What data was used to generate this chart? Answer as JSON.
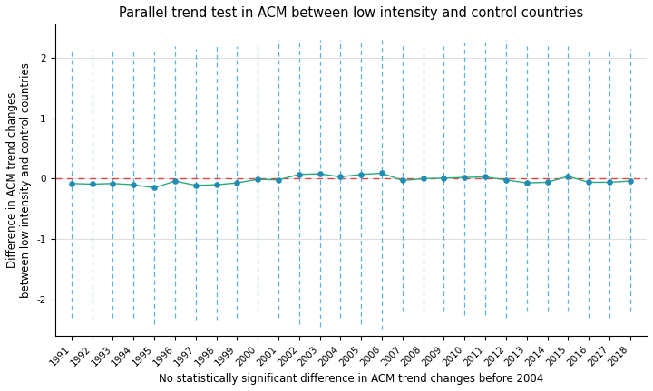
{
  "title": "Parallel trend test in ACM between low intensity and control countries",
  "xlabel": "No statistically significant difference in ACM trend changes before 2004",
  "ylabel": "Difference in ACM trend changes\nbetween low intensity and control countries",
  "years": [
    1991,
    1992,
    1993,
    1994,
    1995,
    1996,
    1997,
    1998,
    1999,
    2000,
    2001,
    2002,
    2003,
    2004,
    2005,
    2006,
    2007,
    2008,
    2009,
    2010,
    2011,
    2012,
    2013,
    2014,
    2015,
    2016,
    2017,
    2018
  ],
  "point_estimates": [
    -0.08,
    -0.09,
    -0.08,
    -0.1,
    -0.15,
    -0.04,
    -0.11,
    -0.1,
    -0.07,
    -0.01,
    -0.02,
    0.07,
    0.08,
    0.03,
    0.07,
    0.09,
    -0.03,
    0.0,
    0.01,
    0.02,
    0.03,
    -0.02,
    -0.07,
    -0.06,
    0.04,
    -0.06,
    -0.06,
    -0.04
  ],
  "ci_upper": [
    2.15,
    2.15,
    2.15,
    2.15,
    2.1,
    2.2,
    2.15,
    2.2,
    2.2,
    2.2,
    2.3,
    2.25,
    2.3,
    2.3,
    2.3,
    2.35,
    2.2,
    2.2,
    2.2,
    2.25,
    2.25,
    2.3,
    2.2,
    2.2,
    2.2,
    2.15,
    2.15,
    2.15
  ],
  "ci_lower": [
    -2.3,
    -2.35,
    -2.3,
    -2.3,
    -2.4,
    -2.3,
    -2.35,
    -2.35,
    -2.3,
    -2.2,
    -2.3,
    -2.4,
    -2.45,
    -2.3,
    -2.4,
    -2.5,
    -2.2,
    -2.2,
    -2.2,
    -2.25,
    -2.25,
    -2.3,
    -2.2,
    -2.2,
    -2.2,
    -2.3,
    -2.3,
    -2.2
  ],
  "line_color": "#2aaa7a",
  "dot_color": "#1e8cb4",
  "errorbar_color": "#5ab4e0",
  "ref_line_color": "#dd4444",
  "grid_color": "#d0d0d0",
  "ylim": [
    -2.6,
    2.55
  ],
  "yticks": [
    -2,
    -1,
    0,
    1,
    2
  ],
  "bg_color": "#ffffff",
  "title_fontsize": 10.5,
  "label_fontsize": 8.5,
  "tick_fontsize": 7.5
}
